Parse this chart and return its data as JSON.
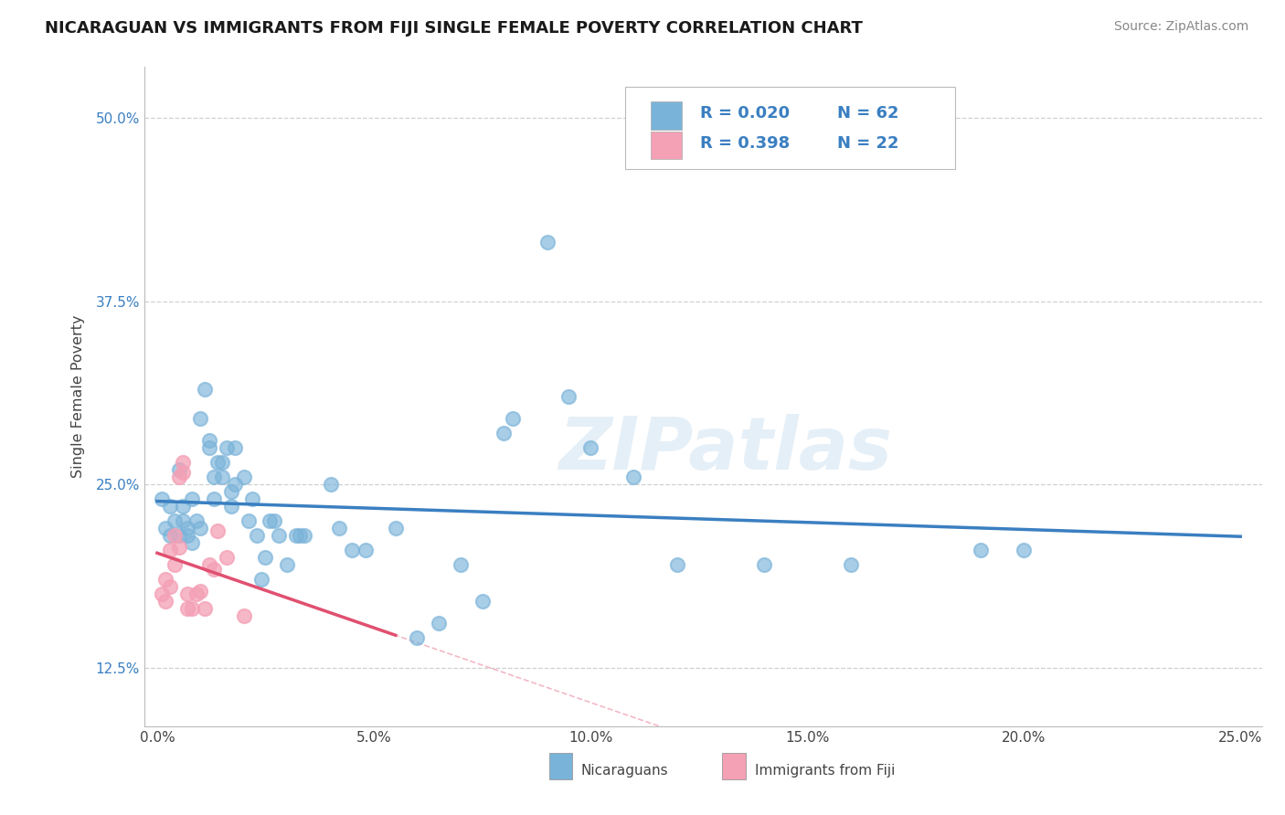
{
  "title": "NICARAGUAN VS IMMIGRANTS FROM FIJI SINGLE FEMALE POVERTY CORRELATION CHART",
  "source_text": "Source: ZipAtlas.com",
  "ylabel": "Single Female Poverty",
  "xlim": [
    -0.003,
    0.255
  ],
  "ylim": [
    0.085,
    0.535
  ],
  "xticks": [
    0.0,
    0.05,
    0.1,
    0.15,
    0.2,
    0.25
  ],
  "xticklabels": [
    "0.0%",
    "5.0%",
    "10.0%",
    "15.0%",
    "20.0%",
    "25.0%"
  ],
  "yticks": [
    0.125,
    0.25,
    0.375,
    0.5
  ],
  "yticklabels": [
    "12.5%",
    "25.0%",
    "37.5%",
    "50.0%"
  ],
  "legend_r1": "R = 0.020",
  "legend_n1": "N = 62",
  "legend_r2": "R = 0.398",
  "legend_n2": "N = 22",
  "watermark_text": "ZIPatlas",
  "blue_dot_color": "#7ab3d9",
  "pink_dot_color": "#f4a0b5",
  "trend_blue_color": "#3a7fc1",
  "trend_pink_color": "#e05070",
  "grid_color": "#d0d0d0",
  "blue_scatter": [
    [
      0.001,
      0.24
    ],
    [
      0.002,
      0.22
    ],
    [
      0.003,
      0.215
    ],
    [
      0.003,
      0.235
    ],
    [
      0.004,
      0.225
    ],
    [
      0.005,
      0.26
    ],
    [
      0.005,
      0.215
    ],
    [
      0.006,
      0.225
    ],
    [
      0.006,
      0.235
    ],
    [
      0.007,
      0.215
    ],
    [
      0.007,
      0.22
    ],
    [
      0.008,
      0.24
    ],
    [
      0.008,
      0.21
    ],
    [
      0.009,
      0.225
    ],
    [
      0.01,
      0.295
    ],
    [
      0.01,
      0.22
    ],
    [
      0.011,
      0.315
    ],
    [
      0.012,
      0.275
    ],
    [
      0.012,
      0.28
    ],
    [
      0.013,
      0.255
    ],
    [
      0.013,
      0.24
    ],
    [
      0.014,
      0.265
    ],
    [
      0.015,
      0.265
    ],
    [
      0.015,
      0.255
    ],
    [
      0.016,
      0.275
    ],
    [
      0.017,
      0.245
    ],
    [
      0.017,
      0.235
    ],
    [
      0.018,
      0.25
    ],
    [
      0.018,
      0.275
    ],
    [
      0.02,
      0.255
    ],
    [
      0.021,
      0.225
    ],
    [
      0.022,
      0.24
    ],
    [
      0.023,
      0.215
    ],
    [
      0.024,
      0.185
    ],
    [
      0.025,
      0.2
    ],
    [
      0.026,
      0.225
    ],
    [
      0.027,
      0.225
    ],
    [
      0.028,
      0.215
    ],
    [
      0.03,
      0.195
    ],
    [
      0.032,
      0.215
    ],
    [
      0.033,
      0.215
    ],
    [
      0.034,
      0.215
    ],
    [
      0.04,
      0.25
    ],
    [
      0.042,
      0.22
    ],
    [
      0.045,
      0.205
    ],
    [
      0.048,
      0.205
    ],
    [
      0.055,
      0.22
    ],
    [
      0.06,
      0.145
    ],
    [
      0.065,
      0.155
    ],
    [
      0.07,
      0.195
    ],
    [
      0.075,
      0.17
    ],
    [
      0.08,
      0.285
    ],
    [
      0.082,
      0.295
    ],
    [
      0.09,
      0.415
    ],
    [
      0.095,
      0.31
    ],
    [
      0.1,
      0.275
    ],
    [
      0.11,
      0.255
    ],
    [
      0.12,
      0.195
    ],
    [
      0.14,
      0.195
    ],
    [
      0.16,
      0.195
    ],
    [
      0.19,
      0.205
    ],
    [
      0.2,
      0.205
    ]
  ],
  "pink_scatter": [
    [
      0.001,
      0.175
    ],
    [
      0.002,
      0.17
    ],
    [
      0.002,
      0.185
    ],
    [
      0.003,
      0.18
    ],
    [
      0.003,
      0.205
    ],
    [
      0.004,
      0.195
    ],
    [
      0.004,
      0.215
    ],
    [
      0.005,
      0.207
    ],
    [
      0.005,
      0.255
    ],
    [
      0.006,
      0.258
    ],
    [
      0.006,
      0.265
    ],
    [
      0.007,
      0.175
    ],
    [
      0.007,
      0.165
    ],
    [
      0.008,
      0.165
    ],
    [
      0.009,
      0.175
    ],
    [
      0.01,
      0.177
    ],
    [
      0.011,
      0.165
    ],
    [
      0.012,
      0.195
    ],
    [
      0.013,
      0.192
    ],
    [
      0.014,
      0.218
    ],
    [
      0.016,
      0.2
    ],
    [
      0.02,
      0.16
    ]
  ],
  "figsize": [
    14.06,
    8.92
  ],
  "dpi": 100
}
